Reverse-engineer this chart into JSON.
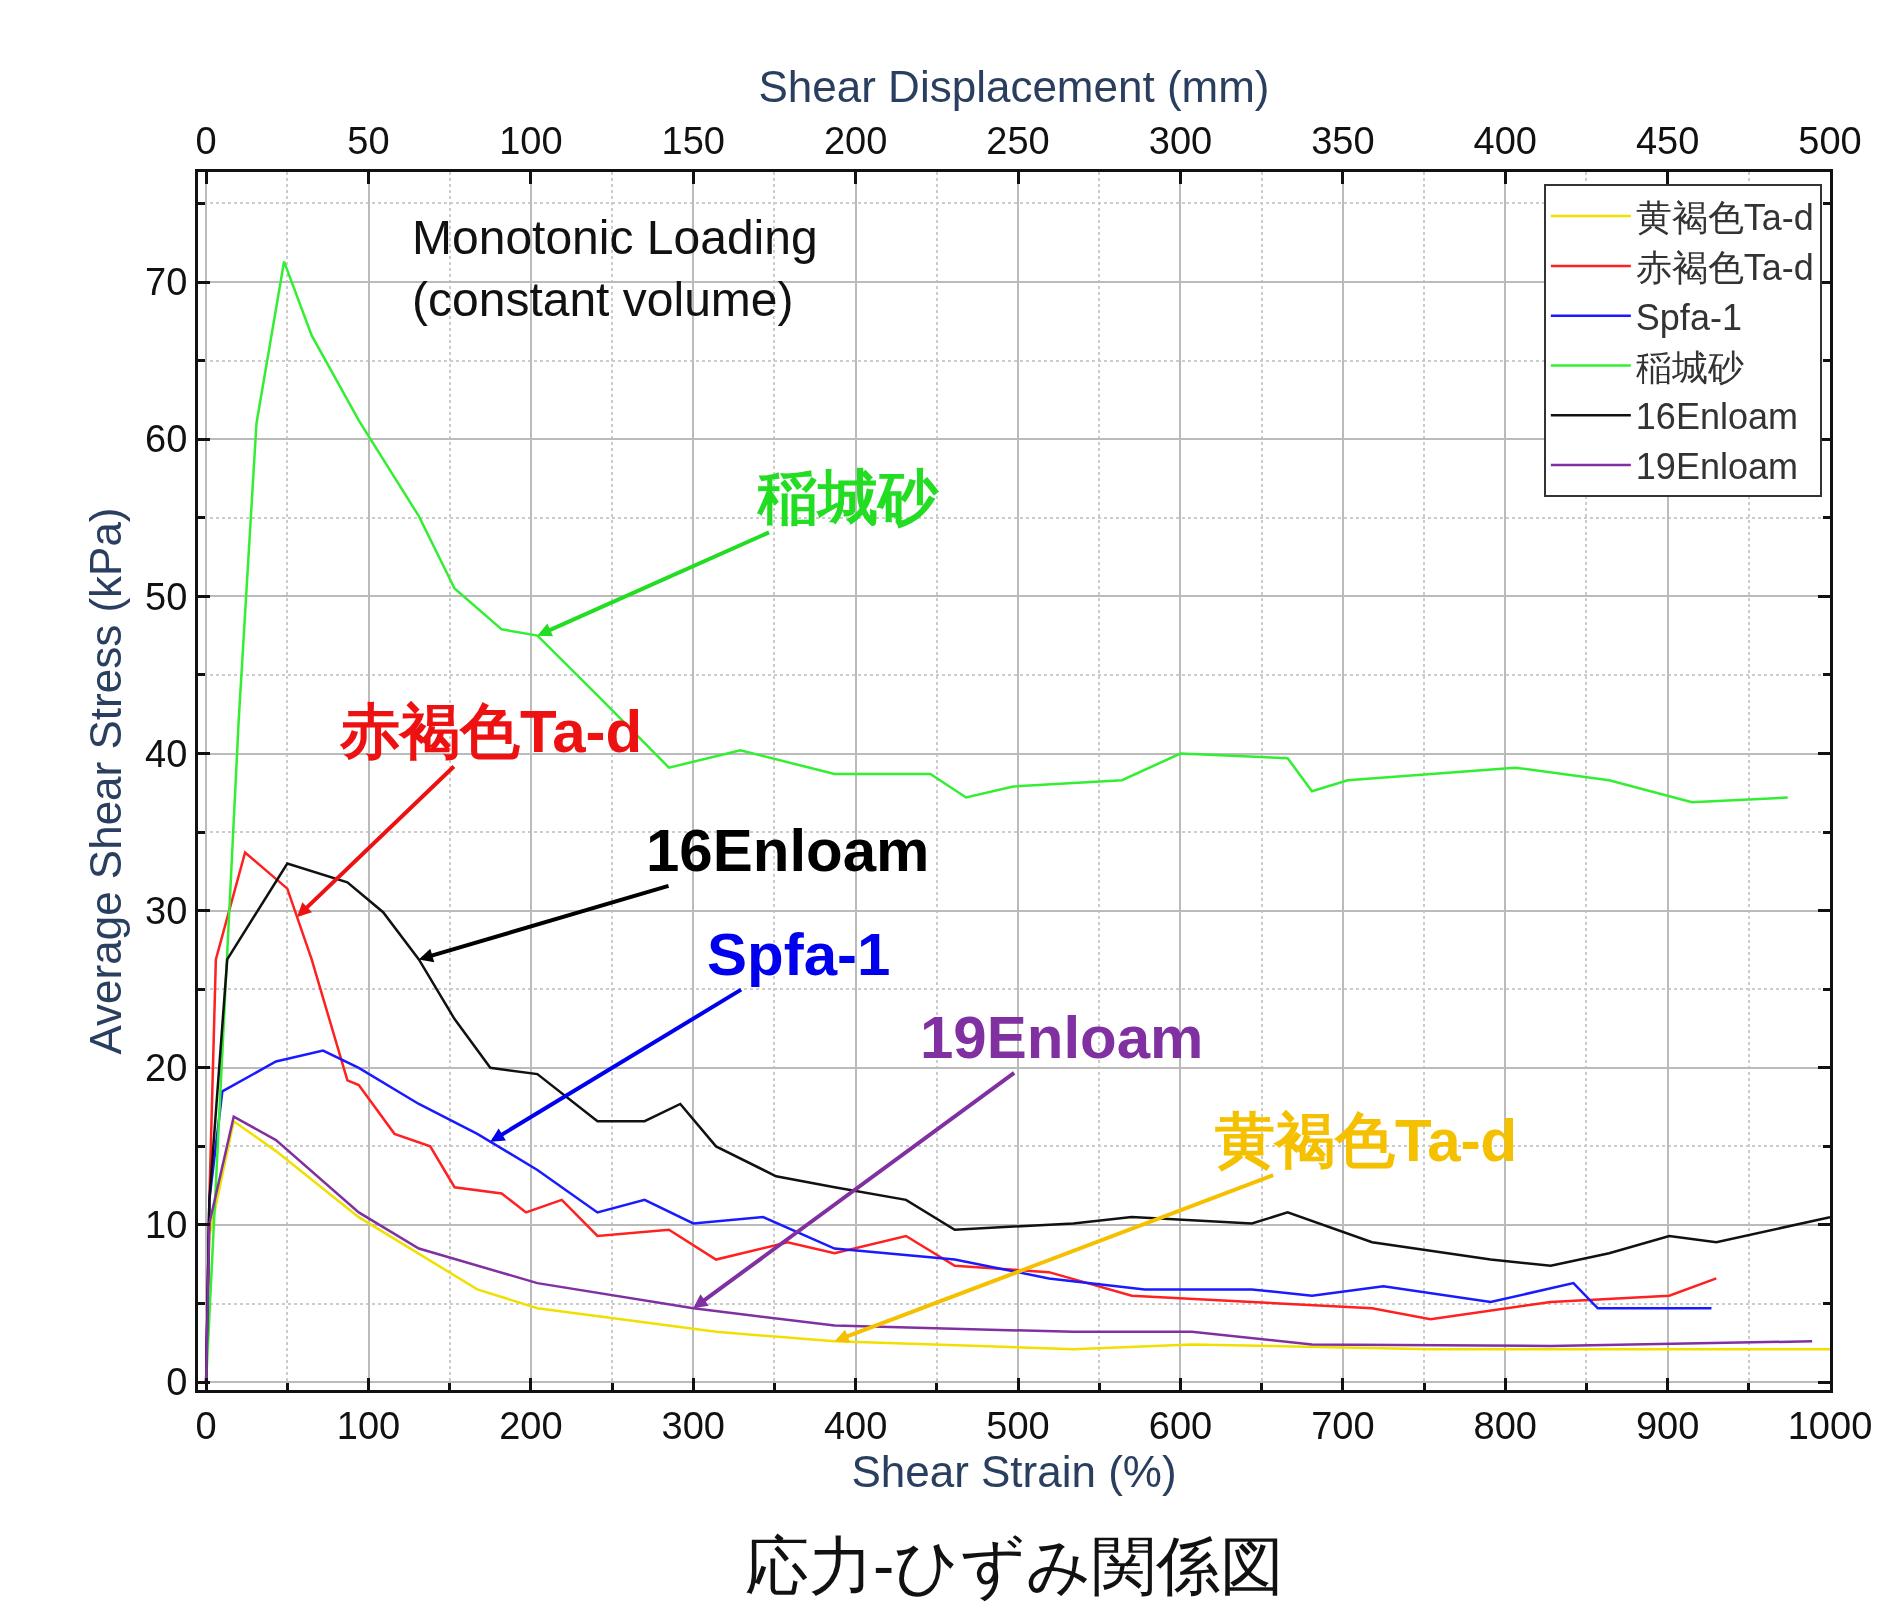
{
  "chart_data": {
    "type": "line",
    "xlabel": "Shear Strain (%)",
    "ylabel": "Average Shear Stress (kPa)",
    "x2label": "Shear Displacement (mm)",
    "xlim": [
      -5,
      1000
    ],
    "xticks": [
      0,
      100,
      200,
      300,
      400,
      500,
      600,
      700,
      800,
      900,
      1000
    ],
    "x2lim": [
      -2.5,
      500
    ],
    "x2ticks": [
      0,
      50,
      100,
      150,
      200,
      250,
      300,
      350,
      400,
      450,
      500
    ],
    "ylim": [
      -0.5,
      77
    ],
    "yticks": [
      0,
      10,
      20,
      30,
      40,
      50,
      60,
      70
    ],
    "grid": true,
    "legend": "top right",
    "line_style": "solid",
    "marker": "none",
    "series": [
      {
        "name": "黄褐色Ta-d",
        "color": "#f0e000",
        "x": [
          0,
          2,
          17,
          43,
          94,
          167,
          204,
          314,
          387,
          534,
          607,
          754,
          974,
          1000
        ],
        "values": [
          0,
          9.3,
          16.6,
          14.7,
          10.5,
          5.9,
          4.7,
          3.2,
          2.6,
          2.1,
          2.4,
          2.1,
          2.1,
          2.1
        ]
      },
      {
        "name": "赤褐色Ta-d",
        "color": "#ff2020",
        "x": [
          0,
          2,
          6,
          24,
          50,
          65,
          87,
          94,
          116,
          138,
          153,
          182,
          197,
          219,
          241,
          285,
          314,
          358,
          387,
          431,
          461,
          519,
          570,
          644,
          718,
          754,
          828,
          901,
          930
        ],
        "values": [
          0,
          11.6,
          26.9,
          33.7,
          31.4,
          26.9,
          19.2,
          18.9,
          15.8,
          15.0,
          12.4,
          12.0,
          10.8,
          11.6,
          9.3,
          9.7,
          7.8,
          8.9,
          8.2,
          9.3,
          7.4,
          7.0,
          5.5,
          5.1,
          4.7,
          4.0,
          5.1,
          5.5,
          6.6
        ]
      },
      {
        "name": "Spfa-1",
        "color": "#1a1aff",
        "x": [
          0,
          2,
          10,
          43,
          72,
          94,
          131,
          167,
          204,
          241,
          270,
          300,
          343,
          387,
          461,
          519,
          578,
          644,
          681,
          725,
          791,
          842,
          857,
          927
        ],
        "values": [
          0,
          11.6,
          18.5,
          20.4,
          21.1,
          20.0,
          17.7,
          15.8,
          13.5,
          10.8,
          11.6,
          10.1,
          10.5,
          8.5,
          7.8,
          6.6,
          5.9,
          5.9,
          5.5,
          6.1,
          5.1,
          6.3,
          4.7,
          4.7
        ]
      },
      {
        "name": "稲城砂",
        "color": "#33ee33",
        "x": [
          0,
          20,
          31,
          48,
          65,
          94,
          131,
          153,
          182,
          204,
          241,
          285,
          329,
          387,
          446,
          468,
          497,
          564,
          600,
          666,
          681,
          703,
          806,
          864,
          915,
          974
        ],
        "values": [
          0,
          42,
          61,
          71.3,
          66.6,
          61.2,
          55.1,
          50.5,
          47.9,
          47.5,
          43.7,
          39.1,
          40.2,
          38.7,
          38.7,
          37.2,
          37.9,
          38.3,
          40.0,
          39.7,
          37.6,
          38.3,
          39.1,
          38.3,
          36.9,
          37.2
        ]
      },
      {
        "name": "16Enloam",
        "color": "#111111",
        "x": [
          0,
          2,
          13,
          50,
          87,
          109,
          131,
          153,
          175,
          204,
          241,
          270,
          292,
          314,
          351,
          387,
          431,
          461,
          534,
          570,
          644,
          666,
          718,
          791,
          828,
          864,
          901,
          930,
          1000
        ],
        "values": [
          0,
          11.6,
          26.9,
          33.0,
          31.8,
          29.9,
          26.9,
          23.1,
          20.0,
          19.6,
          16.6,
          16.6,
          17.7,
          15.0,
          13.1,
          12.4,
          11.6,
          9.7,
          10.1,
          10.5,
          10.1,
          10.8,
          8.9,
          7.8,
          7.4,
          8.2,
          9.3,
          8.9,
          10.5
        ]
      },
      {
        "name": "19Enloam",
        "color": "#8030a0",
        "x": [
          0,
          2,
          17,
          43,
          94,
          131,
          204,
          300,
          387,
          534,
          607,
          681,
          828,
          989
        ],
        "values": [
          0,
          10.1,
          16.9,
          15.4,
          10.8,
          8.5,
          6.3,
          4.7,
          3.6,
          3.2,
          3.2,
          2.4,
          2.3,
          2.6
        ]
      }
    ],
    "annotations": [
      "Monotonic Loading\n(constant volume)",
      {
        "text": "稲城砂",
        "x": 204,
        "y": 47.5
      },
      {
        "text": "赤褐色Ta-d",
        "x": 56,
        "y": 29.6
      },
      {
        "text": "16Enloam",
        "x": 131,
        "y": 26.9
      },
      {
        "text": "Spfa-1",
        "x": 175,
        "y": 15.3
      },
      {
        "text": "19Enloam",
        "x": 300,
        "y": 4.7
      },
      {
        "text": "黄褐色Ta-d",
        "x": 387,
        "y": 2.6
      },
      "応力-ひずみ関係図"
    ]
  }
}
